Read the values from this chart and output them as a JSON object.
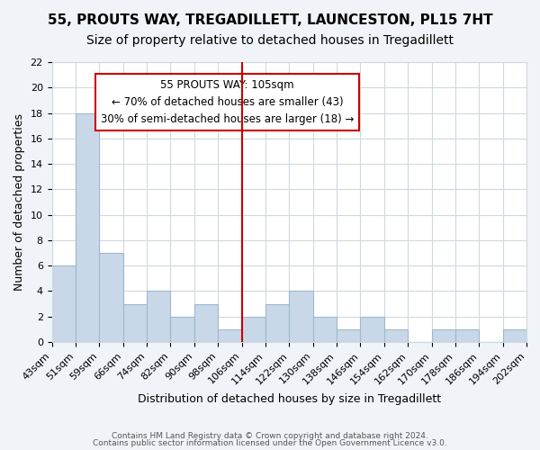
{
  "title1": "55, PROUTS WAY, TREGADILLETT, LAUNCESTON, PL15 7HT",
  "title2": "Size of property relative to detached houses in Tregadillett",
  "xlabel": "Distribution of detached houses by size in Tregadillett",
  "ylabel": "Number of detached properties",
  "bin_labels": [
    "43sqm",
    "51sqm",
    "59sqm",
    "66sqm",
    "74sqm",
    "82sqm",
    "90sqm",
    "98sqm",
    "106sqm",
    "114sqm",
    "122sqm",
    "130sqm",
    "138sqm",
    "146sqm",
    "154sqm",
    "162sqm",
    "170sqm",
    "178sqm",
    "186sqm",
    "194sqm",
    "202sqm"
  ],
  "bar_values": [
    6,
    18,
    7,
    3,
    4,
    2,
    3,
    1,
    2,
    3,
    4,
    2,
    1,
    2,
    1,
    0,
    1,
    1,
    0,
    1
  ],
  "bar_color": "#c8d8e8",
  "bar_edge_color": "#a0b8cc",
  "vline_label_idx": 8,
  "vline_color": "#cc0000",
  "annotation_box_text": "55 PROUTS WAY: 105sqm\n← 70% of detached houses are smaller (43)\n30% of semi-detached houses are larger (18) →",
  "annotation_box_color": "#ffffff",
  "annotation_box_edge_color": "#cc0000",
  "ylim": [
    0,
    22
  ],
  "yticks": [
    0,
    2,
    4,
    6,
    8,
    10,
    12,
    14,
    16,
    18,
    20,
    22
  ],
  "footnote1": "Contains HM Land Registry data © Crown copyright and database right 2024.",
  "footnote2": "Contains public sector information licensed under the Open Government Licence v3.0.",
  "bg_color": "#f0f4f8",
  "plot_bg_color": "#ffffff",
  "grid_color": "#d0d8e0",
  "title1_fontsize": 11,
  "title2_fontsize": 10,
  "xlabel_fontsize": 9,
  "ylabel_fontsize": 9,
  "tick_fontsize": 8
}
